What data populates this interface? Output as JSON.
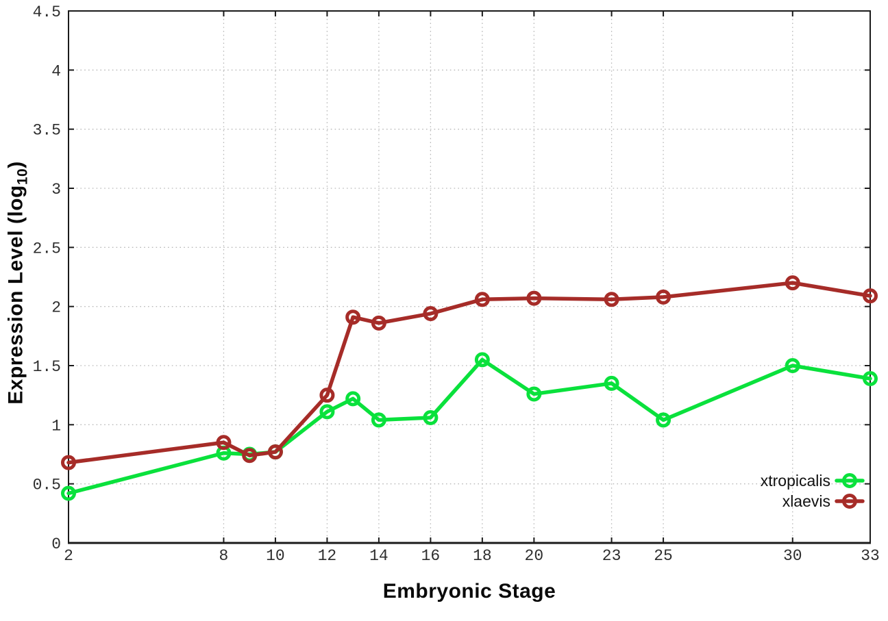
{
  "chart_data": {
    "type": "line",
    "title": "",
    "xlabel": "Embryonic Stage",
    "ylabel": "Expression Level (log10)",
    "ylabel_prefix": "Expression Level (log",
    "ylabel_sub": "10",
    "ylabel_suffix": ")",
    "x": [
      2,
      8,
      9,
      10,
      12,
      13,
      14,
      16,
      18,
      20,
      23,
      25,
      30,
      33
    ],
    "series": [
      {
        "name": "xtropicalis",
        "color": "#0ae13c",
        "values": [
          0.42,
          0.76,
          0.75,
          0.77,
          1.11,
          1.22,
          1.04,
          1.06,
          1.55,
          1.26,
          1.35,
          1.04,
          1.5,
          1.39
        ]
      },
      {
        "name": "xlaevis",
        "color": "#a62c28",
        "values": [
          0.68,
          0.85,
          0.74,
          0.77,
          1.25,
          1.91,
          1.86,
          1.94,
          2.06,
          2.07,
          2.06,
          2.08,
          2.2,
          2.09
        ]
      }
    ],
    "xtick_labels": [
      "2",
      "8",
      "10",
      "12",
      "14",
      "16",
      "18",
      "20",
      "23",
      "25",
      "30",
      "33"
    ],
    "xtick_values": [
      2,
      8,
      10,
      12,
      14,
      16,
      18,
      20,
      23,
      25,
      30,
      33
    ],
    "ytick_labels": [
      "0",
      "0.5",
      "1",
      "1.5",
      "2",
      "2.5",
      "3",
      "3.5",
      "4",
      "4.5"
    ],
    "ytick_values": [
      0,
      0.5,
      1,
      1.5,
      2,
      2.5,
      3,
      3.5,
      4,
      4.5
    ],
    "xlim": [
      2,
      33
    ],
    "ylim": [
      0,
      4.5
    ],
    "grid": true,
    "legend_position": "inside-bottom-right",
    "legend": [
      "xtropicalis",
      "xlaevis"
    ],
    "colors": {
      "background": "#ffffff",
      "border": "#1a1a1a",
      "grid": "#b8b8b8",
      "tick_text": "#2e2e2e"
    }
  }
}
